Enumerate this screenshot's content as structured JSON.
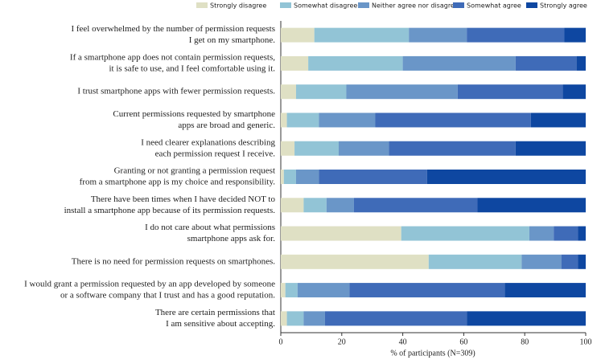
{
  "chart_data": {
    "type": "stacked-bar-horizontal",
    "categories": [
      [
        "I feel overwhelmed by the number of permission requests",
        "I get on my smartphone."
      ],
      [
        "If a smartphone app does not contain permission requests,",
        "it is safe to use, and I feel comfortable using it."
      ],
      [
        "I trust smartphone apps with fewer permission requests."
      ],
      [
        "Current permissions requested by smartphone",
        "apps are broad and generic."
      ],
      [
        "I need clearer explanations describing",
        "each permission request I receive."
      ],
      [
        "Granting or not granting a permission request",
        "from a smartphone app is my choice and responsibility."
      ],
      [
        "There have been times when I have decided NOT to",
        "install a smartphone app because of its permission requests."
      ],
      [
        "I do not care about what permissions",
        "smartphone apps ask for."
      ],
      [
        "There is no need for permission requests on smartphones."
      ],
      [
        "I would grant a permission requested by an app developed by someone",
        "or a software company that I trust and has a good reputation."
      ],
      [
        "There are certain permissions that",
        "I am sensitive about accepting."
      ]
    ],
    "series": [
      {
        "name": "Strongly disagree",
        "color": "#dfe0c4",
        "values": [
          11,
          9,
          5,
          2,
          4.5,
          1,
          7.5,
          39.5,
          48.5,
          1.5,
          2
        ]
      },
      {
        "name": "Somewhat disagree",
        "color": "#92c4d6",
        "values": [
          31,
          31,
          16.5,
          10.5,
          14.5,
          4,
          7.5,
          42,
          30.5,
          4,
          5.5
        ]
      },
      {
        "name": "Neither agree nor disagree",
        "color": "#6a96c8",
        "values": [
          19,
          37,
          36.5,
          18.5,
          16.5,
          7.5,
          9,
          8,
          13,
          17,
          7
        ]
      },
      {
        "name": "Somewhat agree",
        "color": "#3f6bb8",
        "values": [
          32,
          20,
          34.5,
          51,
          41.5,
          35.5,
          40.5,
          8,
          5.5,
          51,
          46.5
        ]
      },
      {
        "name": "Strongly agree",
        "color": "#0e47a1",
        "values": [
          7,
          3,
          7.5,
          18,
          23,
          52,
          35.5,
          2.5,
          2.5,
          26.5,
          39
        ]
      }
    ],
    "xlabel": "% of participants (N=309)",
    "xlim": [
      0,
      100
    ],
    "xticks": [
      0,
      20,
      40,
      60,
      80,
      100
    ],
    "legend": "top"
  }
}
